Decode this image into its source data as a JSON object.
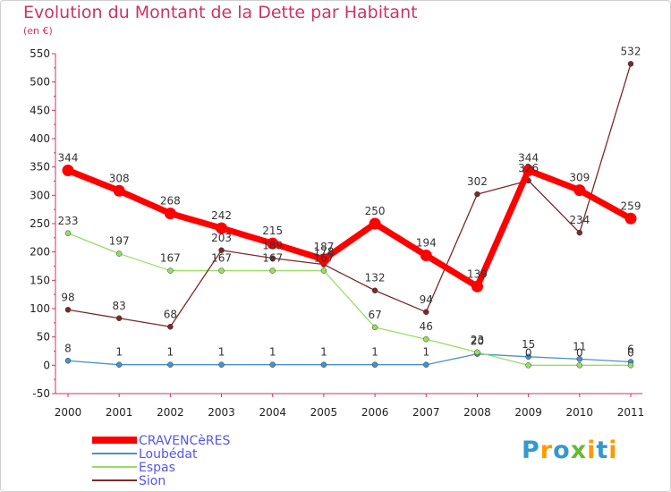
{
  "chart_data": {
    "type": "line",
    "title": "Evolution du Montant de la Dette par Habitant",
    "subtitle": "(en €)",
    "categories": [
      "2000",
      "2001",
      "2002",
      "2003",
      "2004",
      "2005",
      "2006",
      "2007",
      "2008",
      "2009",
      "2010",
      "2011"
    ],
    "ylim": [
      -50,
      550
    ],
    "yticks": [
      -50,
      0,
      50,
      100,
      150,
      200,
      250,
      300,
      350,
      400,
      450,
      500,
      550
    ],
    "grid": false,
    "legend_position": "bottom-left",
    "series": [
      {
        "name": "CRAVENCèRES",
        "color": "#ff0000",
        "values": [
          344,
          308,
          268,
          242,
          215,
          187,
          250,
          194,
          139,
          344,
          309,
          259
        ],
        "labels": [
          "344",
          "308",
          "268",
          "242",
          "215",
          "187",
          "250",
          "194",
          "139",
          "344",
          "309",
          "259"
        ]
      },
      {
        "name": "Loubédat",
        "color": "#4b91c9",
        "values": [
          8,
          1,
          1,
          1,
          1,
          1,
          1,
          1,
          20,
          15,
          11,
          6
        ],
        "labels": [
          "8",
          "1",
          "1",
          "1",
          "1",
          "1",
          "1",
          "1",
          "20",
          "15",
          "11",
          "6"
        ]
      },
      {
        "name": "Espas",
        "color": "#99dd66",
        "values": [
          233,
          197,
          167,
          167,
          167,
          167,
          67,
          46,
          23,
          0,
          0,
          0
        ],
        "labels": [
          "233",
          "197",
          "167",
          "167",
          "167",
          "167",
          "67",
          "46",
          "23",
          "0",
          "0",
          "0"
        ]
      },
      {
        "name": "Sion",
        "color": "#7b2a2a",
        "values": [
          98,
          83,
          68,
          203,
          189,
          178,
          132,
          94,
          302,
          326,
          234,
          532
        ],
        "labels": [
          "98",
          "83",
          "68",
          "203",
          "189",
          "178",
          "132",
          "94",
          "302",
          "326",
          "234",
          "532"
        ]
      }
    ]
  },
  "logo": {
    "text": "Proxiti",
    "colors": [
      "#3399cc",
      "#ff9900",
      "#3399cc",
      "#66bb33",
      "#ff9900",
      "#3399cc",
      "#ff9900"
    ]
  }
}
